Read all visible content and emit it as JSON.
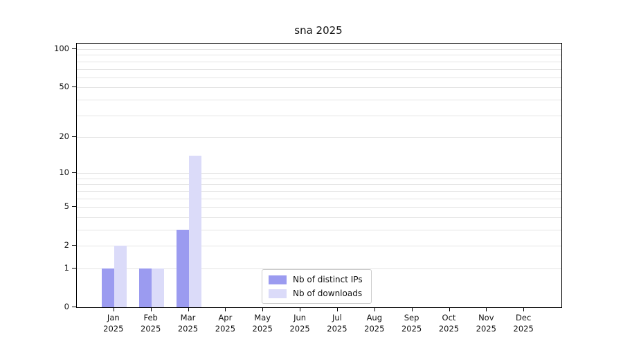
{
  "title": "sna 2025",
  "chart_data": {
    "type": "bar",
    "title": "sna 2025",
    "x_year": "2025",
    "categories": [
      "Jan",
      "Feb",
      "Mar",
      "Apr",
      "May",
      "Jun",
      "Jul",
      "Aug",
      "Sep",
      "Oct",
      "Nov",
      "Dec"
    ],
    "series": [
      {
        "name": "Nb of distinct IPs",
        "color": "#9b9bf0",
        "values": [
          1,
          1,
          3,
          0,
          0,
          0,
          0,
          0,
          0,
          0,
          0,
          0
        ]
      },
      {
        "name": "Nb of downloads",
        "color": "#dbdbf9",
        "values": [
          2,
          1,
          14,
          0,
          0,
          0,
          0,
          0,
          0,
          0,
          0,
          0
        ]
      }
    ],
    "y_scale": "log1p",
    "y_ticks": [
      0,
      1,
      2,
      5,
      10,
      20,
      50,
      100
    ],
    "y_minor_gridlines": [
      3,
      4,
      6,
      7,
      8,
      9,
      30,
      40,
      60,
      70,
      80,
      90
    ],
    "ylim": [
      0,
      110
    ],
    "grid": "horizontal",
    "legend_position": "lower center"
  }
}
